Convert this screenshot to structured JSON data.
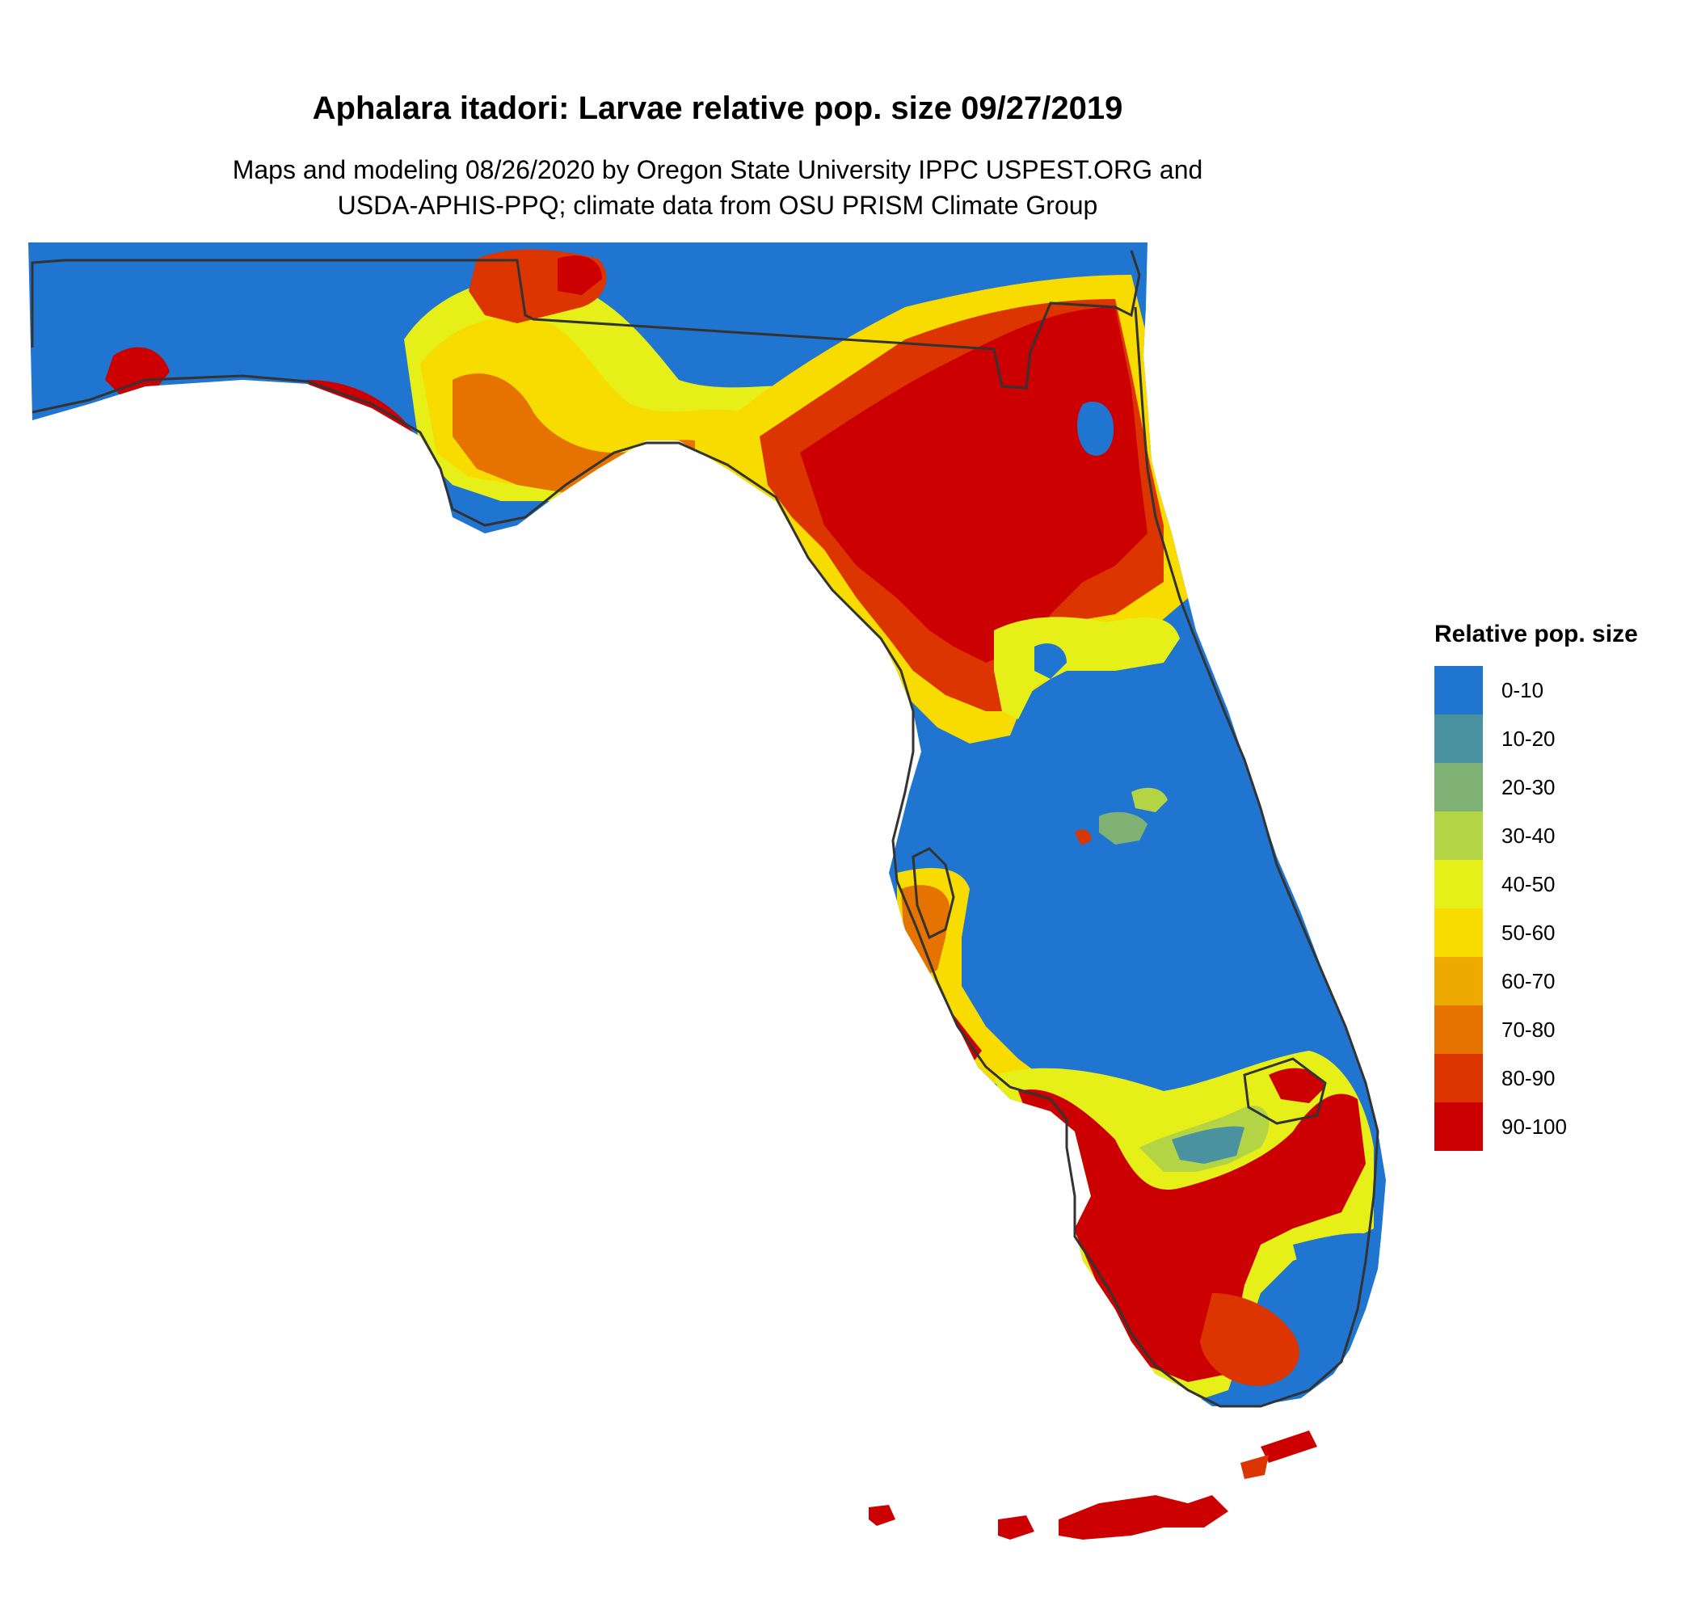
{
  "title": "Aphalara itadori: Larvae relative pop. size 09/27/2019",
  "subtitle_line1": "Maps and modeling 08/26/2020 by Oregon State University IPPC USPEST.ORG and",
  "subtitle_line2": "USDA-APHIS-PPQ; climate data from OSU PRISM Climate Group",
  "legend": {
    "title": "Relative pop. size",
    "items": [
      {
        "label": "0-10",
        "color": "#1f75d0"
      },
      {
        "label": "10-20",
        "color": "#4b92a1"
      },
      {
        "label": "20-30",
        "color": "#7fb174"
      },
      {
        "label": "30-40",
        "color": "#b3d444"
      },
      {
        "label": "40-50",
        "color": "#e6ef17"
      },
      {
        "label": "50-60",
        "color": "#f8dc00"
      },
      {
        "label": "60-70",
        "color": "#efaa00"
      },
      {
        "label": "70-80",
        "color": "#e67300"
      },
      {
        "label": "80-90",
        "color": "#dd3500"
      },
      {
        "label": "90-100",
        "color": "#cc0000"
      }
    ]
  },
  "map": {
    "region": "Florida",
    "boundary_color": "#333333",
    "dominant_classes": [
      "0-10",
      "90-100",
      "80-90",
      "50-60",
      "40-50"
    ]
  }
}
